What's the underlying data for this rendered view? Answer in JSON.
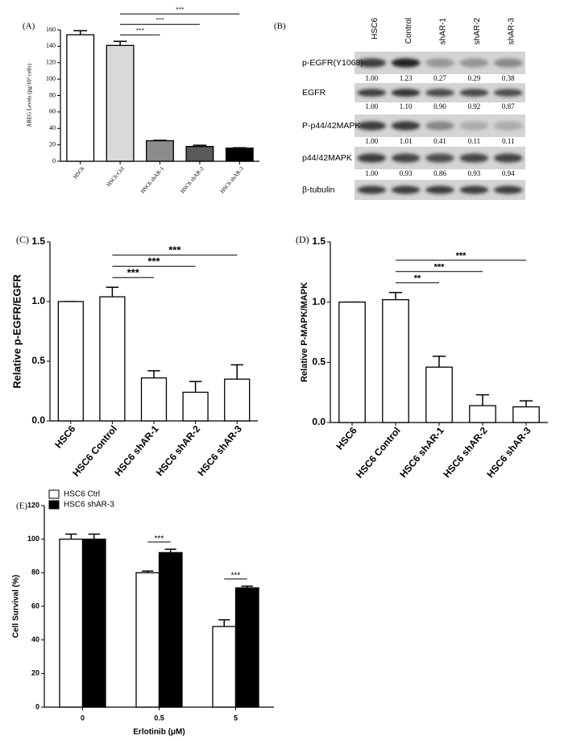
{
  "chart_data": [
    {
      "type": "bar",
      "label": "(A)",
      "ylabel": "AREG Levels (pg/10⁶ cells)",
      "categories": [
        "HSC6",
        "HSC6 Ctrl",
        "HSC6 shAR-1",
        "HSC6 shAR-2",
        "HSC6 shAR-3"
      ],
      "values": [
        154,
        141,
        25,
        18,
        16
      ],
      "errors": [
        5,
        5,
        0.5,
        1.5,
        0.5
      ],
      "colors": [
        "#ffffff",
        "#d9d9d9",
        "#8c8c8c",
        "#5a5a5a",
        "#000000"
      ],
      "ylim": [
        0,
        160
      ],
      "yticks": [
        0,
        20,
        40,
        60,
        80,
        100,
        120,
        140,
        160
      ],
      "brackets": [
        {
          "from": "HSC6 Ctrl",
          "to": "HSC6 shAR-1",
          "label": "***"
        },
        {
          "from": "HSC6 Ctrl",
          "to": "HSC6 shAR-2",
          "label": "***"
        },
        {
          "from": "HSC6 Ctrl",
          "to": "HSC6 shAR-3",
          "label": "***"
        }
      ]
    },
    {
      "type": "bar",
      "label": "(C)",
      "ylabel": "Relative p-EGFR/EGFR",
      "categories": [
        "HSC6",
        "HSC6 Control",
        "HSC6 shAR-1",
        "HSC6 shAR-2",
        "HSC6 shAR-3"
      ],
      "values": [
        1.0,
        1.04,
        0.36,
        0.24,
        0.35
      ],
      "errors": [
        0,
        0.08,
        0.06,
        0.09,
        0.12
      ],
      "color": "#ffffff",
      "ylim": [
        0,
        1.5
      ],
      "yticks": [
        {
          "value": 0,
          "label": "0.0"
        },
        0.5,
        {
          "value": 1,
          "label": "1.0"
        },
        1.5
      ],
      "brackets": [
        {
          "from": "HSC6 Control",
          "to": "HSC6 shAR-1",
          "label": "***"
        },
        {
          "from": "HSC6 Control",
          "to": "HSC6 shAR-2",
          "label": "***"
        },
        {
          "from": "HSC6 Control",
          "to": "HSC6 shAR-3",
          "label": "***"
        }
      ]
    },
    {
      "type": "bar",
      "label": "(D)",
      "ylabel": "Relative P-MAPK/MAPK",
      "categories": [
        "HSC6",
        "HSC6 Control",
        "HSC6 shAR-1",
        "HSC6 shAR-2",
        "HSC6 shAR-3"
      ],
      "values": [
        1.0,
        1.02,
        0.46,
        0.14,
        0.13
      ],
      "errors": [
        0,
        0.06,
        0.09,
        0.09,
        0.05
      ],
      "color": "#ffffff",
      "ylim": [
        0,
        1.5
      ],
      "yticks": [
        {
          "value": 0,
          "label": "0.0"
        },
        0.5,
        {
          "value": 1,
          "label": "1.0"
        },
        1.5
      ],
      "brackets": [
        {
          "from": "HSC6 Control",
          "to": "HSC6 shAR-1",
          "label": "**"
        },
        {
          "from": "HSC6 Control",
          "to": "HSC6 shAR-2",
          "label": "***"
        },
        {
          "from": "HSC6 Control",
          "to": "HSC6 shAR-3",
          "label": "***"
        }
      ]
    },
    {
      "type": "grouped-bar",
      "label": "(E)",
      "ylabel": "Cell Survival (%)",
      "xlabel": "Erlotinib (μM)",
      "categories": [
        "0",
        "0.5",
        "5"
      ],
      "series": [
        {
          "name": "HSC6 Ctrl",
          "color": "#ffffff",
          "values": [
            100,
            80,
            48
          ],
          "errors": [
            3,
            1,
            4
          ]
        },
        {
          "name": "HSC6 shAR-3",
          "color": "#000000",
          "values": [
            100,
            92,
            71
          ],
          "errors": [
            3,
            2,
            1
          ]
        }
      ],
      "ylim": [
        0,
        120
      ],
      "yticks": [
        0,
        20,
        40,
        60,
        80,
        100,
        120
      ],
      "legend": "upper left",
      "brackets": [
        {
          "category": "0.5",
          "label": "***"
        },
        {
          "category": "5",
          "label": "***"
        }
      ]
    }
  ],
  "blot": {
    "label": "(B)",
    "lanes": [
      "HSC6",
      "Control",
      "shAR-1",
      "shAR-2",
      "shAR-3"
    ],
    "rows": [
      {
        "name": "p-EGFR(Y1068)",
        "quant": [
          "1.00",
          "1.23",
          "0.27",
          "0.29",
          "0.38"
        ]
      },
      {
        "name": "EGFR",
        "quant": [
          "1.00",
          "1.10",
          "0.90",
          "0.92",
          "0.87"
        ]
      },
      {
        "name": "P-p44/42MAPK",
        "quant": [
          "1.00",
          "1.01",
          "0.41",
          "0.11",
          "0.11"
        ]
      },
      {
        "name": "p44/42MAPK",
        "quant": [
          "1.00",
          "0.93",
          "0.86",
          "0.93",
          "0.94"
        ]
      },
      {
        "name": "β-tubulin"
      }
    ]
  }
}
